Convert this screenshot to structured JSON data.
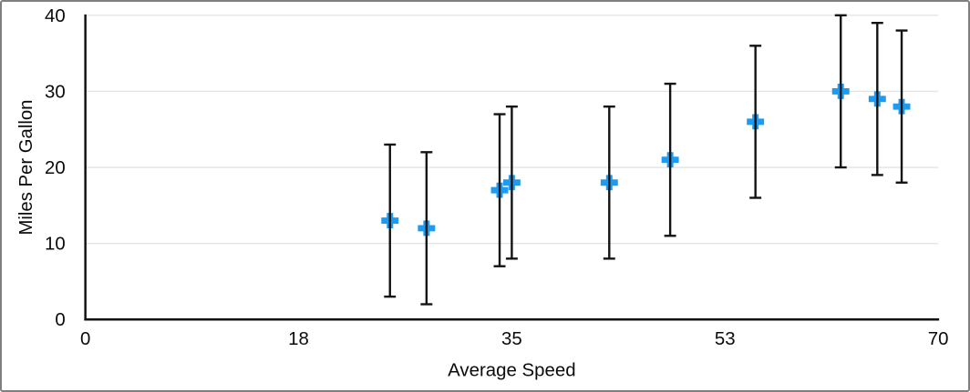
{
  "frame": {
    "background": "#FFFFFF",
    "border_color": "#7F7F7F"
  },
  "chart_data": {
    "type": "scatter",
    "title": "",
    "xlabel": "Average Speed",
    "ylabel": "Miles Per Gallon",
    "xlim": [
      0,
      70
    ],
    "ylim": [
      0,
      40
    ],
    "grid": "horizontal",
    "legend": "none",
    "x_ticks": [
      {
        "value": 0,
        "label": "0"
      },
      {
        "value": 17.5,
        "label": "18"
      },
      {
        "value": 35,
        "label": "35"
      },
      {
        "value": 52.5,
        "label": "53"
      },
      {
        "value": 70,
        "label": "70"
      }
    ],
    "y_ticks": [
      {
        "value": 0,
        "label": "0"
      },
      {
        "value": 10,
        "label": "10"
      },
      {
        "value": 20,
        "label": "20"
      },
      {
        "value": 30,
        "label": "30"
      },
      {
        "value": 40,
        "label": "40"
      }
    ],
    "marker": {
      "shape": "plus"
    },
    "error_bars": {
      "axis": "y",
      "magnitude": 10
    },
    "points": [
      {
        "x": 25,
        "y": 13
      },
      {
        "x": 28,
        "y": 12
      },
      {
        "x": 34,
        "y": 17
      },
      {
        "x": 35,
        "y": 18
      },
      {
        "x": 43,
        "y": 18
      },
      {
        "x": 48,
        "y": 21
      },
      {
        "x": 55,
        "y": 26
      },
      {
        "x": 62,
        "y": 30
      },
      {
        "x": 65,
        "y": 29
      },
      {
        "x": 67,
        "y": 28
      }
    ],
    "colors": {
      "marker": "#1D9BF0",
      "axis_and_error": "#121212",
      "grid": "#E4E4E4",
      "text": "#0B0B0B"
    }
  }
}
